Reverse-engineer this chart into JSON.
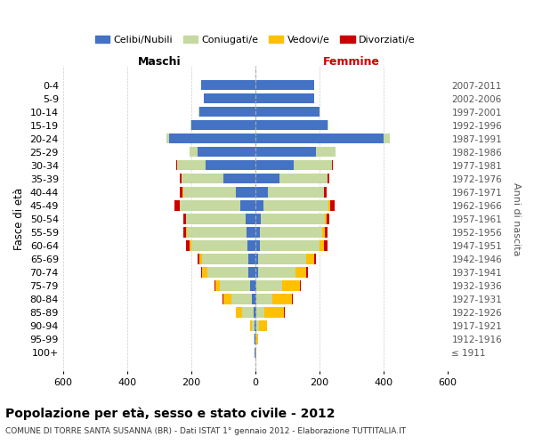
{
  "age_groups": [
    "100+",
    "95-99",
    "90-94",
    "85-89",
    "80-84",
    "75-79",
    "70-74",
    "65-69",
    "60-64",
    "55-59",
    "50-54",
    "45-49",
    "40-44",
    "35-39",
    "30-34",
    "25-29",
    "20-24",
    "15-19",
    "10-14",
    "5-9",
    "0-4"
  ],
  "birth_years": [
    "≤ 1911",
    "1912-1916",
    "1917-1921",
    "1922-1926",
    "1927-1931",
    "1932-1936",
    "1937-1941",
    "1942-1946",
    "1947-1951",
    "1952-1956",
    "1957-1961",
    "1962-1966",
    "1967-1971",
    "1972-1976",
    "1977-1981",
    "1982-1986",
    "1987-1991",
    "1992-1996",
    "1997-2001",
    "2002-2006",
    "2007-2011"
  ],
  "male": {
    "celibi": [
      2,
      2,
      2,
      5,
      10,
      15,
      20,
      20,
      25,
      28,
      30,
      45,
      60,
      100,
      155,
      180,
      270,
      200,
      175,
      160,
      170
    ],
    "coniugati": [
      1,
      2,
      8,
      35,
      65,
      95,
      130,
      145,
      175,
      185,
      185,
      190,
      165,
      130,
      90,
      25,
      8,
      2,
      1,
      0,
      0
    ],
    "vedovi": [
      0,
      0,
      5,
      20,
      25,
      15,
      15,
      10,
      5,
      3,
      2,
      1,
      1,
      0,
      0,
      0,
      0,
      0,
      0,
      0,
      0
    ],
    "divorziati": [
      0,
      0,
      0,
      0,
      1,
      2,
      5,
      5,
      10,
      8,
      8,
      15,
      10,
      5,
      2,
      1,
      0,
      0,
      0,
      0,
      0
    ]
  },
  "female": {
    "nubili": [
      2,
      2,
      3,
      5,
      5,
      5,
      10,
      10,
      15,
      15,
      18,
      25,
      40,
      75,
      120,
      190,
      400,
      225,
      200,
      185,
      185
    ],
    "coniugate": [
      0,
      2,
      8,
      25,
      50,
      80,
      115,
      150,
      185,
      195,
      200,
      205,
      175,
      150,
      120,
      60,
      20,
      3,
      1,
      0,
      0
    ],
    "vedove": [
      1,
      5,
      25,
      60,
      60,
      55,
      35,
      25,
      15,
      8,
      5,
      3,
      1,
      1,
      0,
      0,
      0,
      0,
      0,
      0,
      0
    ],
    "divorziate": [
      0,
      0,
      1,
      2,
      2,
      2,
      5,
      5,
      10,
      8,
      8,
      15,
      8,
      5,
      2,
      1,
      0,
      0,
      0,
      0,
      0
    ]
  },
  "colors": {
    "celibi": "#4472C4",
    "coniugati": "#c5d9a0",
    "vedovi": "#ffc000",
    "divorziati": "#cc0000"
  },
  "title": "Popolazione per età, sesso e stato civile - 2012",
  "subtitle": "COMUNE DI TORRE SANTA SUSANNA (BR) - Dati ISTAT 1° gennaio 2012 - Elaborazione TUTTITALIA.IT",
  "xlabel_left": "Maschi",
  "xlabel_right": "Femmine",
  "ylabel_left": "Fasce di età",
  "ylabel_right": "Anni di nascita",
  "xlim": 600,
  "legend_labels": [
    "Celibi/Nubili",
    "Coniugati/e",
    "Vedovi/e",
    "Divorziati/e"
  ],
  "background_color": "#ffffff",
  "grid_color": "#cccccc"
}
